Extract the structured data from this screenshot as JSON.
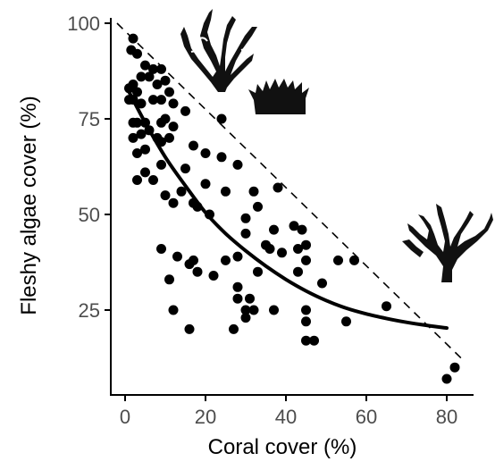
{
  "chart_data": {
    "type": "scatter",
    "title": "",
    "xlabel": "Coral cover (%)",
    "ylabel": "Fleshy algae cover (%)",
    "xlim": [
      -3,
      86
    ],
    "ylim": [
      3,
      102
    ],
    "xticks": [
      0,
      20,
      40,
      60,
      80
    ],
    "yticks": [
      25,
      50,
      75,
      100
    ],
    "grid": false,
    "legend": "none",
    "points": [
      [
        2,
        96
      ],
      [
        1.5,
        93
      ],
      [
        3,
        92
      ],
      [
        5,
        89
      ],
      [
        7,
        88
      ],
      [
        9,
        88
      ],
      [
        6,
        86
      ],
      [
        4,
        86
      ],
      [
        1,
        83
      ],
      [
        2,
        84
      ],
      [
        3,
        82
      ],
      [
        8,
        84
      ],
      [
        10,
        85
      ],
      [
        11,
        82
      ],
      [
        1,
        80
      ],
      [
        2,
        80
      ],
      [
        4,
        79
      ],
      [
        7,
        80
      ],
      [
        9,
        80
      ],
      [
        12,
        79
      ],
      [
        15,
        77
      ],
      [
        2,
        74
      ],
      [
        3,
        74
      ],
      [
        5,
        74
      ],
      [
        9,
        74
      ],
      [
        10,
        75
      ],
      [
        12,
        73
      ],
      [
        4,
        71
      ],
      [
        6,
        72
      ],
      [
        8,
        70
      ],
      [
        2,
        70
      ],
      [
        3,
        66
      ],
      [
        5,
        67
      ],
      [
        9,
        69
      ],
      [
        11,
        70
      ],
      [
        17,
        68
      ],
      [
        20,
        66
      ],
      [
        24,
        65
      ],
      [
        28,
        63
      ],
      [
        9,
        63
      ],
      [
        15,
        62
      ],
      [
        5,
        61
      ],
      [
        3,
        59
      ],
      [
        7,
        59
      ],
      [
        24,
        75
      ],
      [
        20,
        58
      ],
      [
        38,
        57
      ],
      [
        10,
        55
      ],
      [
        12,
        53
      ],
      [
        14,
        56
      ],
      [
        17,
        53
      ],
      [
        18,
        52
      ],
      [
        25,
        56
      ],
      [
        32,
        56
      ],
      [
        33,
        52
      ],
      [
        21,
        50
      ],
      [
        30,
        49
      ],
      [
        37,
        46
      ],
      [
        42,
        47
      ],
      [
        44,
        46
      ],
      [
        30,
        45
      ],
      [
        35,
        42
      ],
      [
        36,
        41
      ],
      [
        43,
        41
      ],
      [
        45,
        42
      ],
      [
        9,
        41
      ],
      [
        13,
        39
      ],
      [
        28,
        39
      ],
      [
        16,
        37
      ],
      [
        17,
        38
      ],
      [
        25,
        38
      ],
      [
        39,
        40
      ],
      [
        45,
        38
      ],
      [
        53,
        38
      ],
      [
        57,
        38
      ],
      [
        18,
        35
      ],
      [
        33,
        35
      ],
      [
        43,
        35
      ],
      [
        11,
        33
      ],
      [
        22,
        34
      ],
      [
        28,
        31
      ],
      [
        49,
        32
      ],
      [
        28,
        28
      ],
      [
        31,
        28
      ],
      [
        12,
        25
      ],
      [
        30,
        25
      ],
      [
        32,
        25
      ],
      [
        37,
        25
      ],
      [
        45,
        25
      ],
      [
        30,
        23
      ],
      [
        45,
        22
      ],
      [
        55,
        22
      ],
      [
        65,
        26
      ],
      [
        16,
        20
      ],
      [
        27,
        20
      ],
      [
        45,
        17
      ],
      [
        47,
        17
      ],
      [
        82,
        10
      ],
      [
        80,
        7
      ]
    ],
    "fit_curve": [
      [
        1,
        82
      ],
      [
        5,
        74
      ],
      [
        10,
        65
      ],
      [
        15,
        57.5
      ],
      [
        20,
        50.5
      ],
      [
        25,
        45
      ],
      [
        30,
        40.5
      ],
      [
        35,
        36.5
      ],
      [
        40,
        33
      ],
      [
        45,
        30
      ],
      [
        50,
        27.5
      ],
      [
        55,
        25.5
      ],
      [
        60,
        24
      ],
      [
        65,
        22.8
      ],
      [
        70,
        21.8
      ],
      [
        75,
        21
      ],
      [
        80,
        20.3
      ]
    ],
    "reference_line": [
      [
        -2,
        100
      ],
      [
        84,
        12
      ]
    ],
    "icons": [
      "seaweed-icon",
      "turf-algae-icon",
      "branching-coral-icon"
    ]
  }
}
